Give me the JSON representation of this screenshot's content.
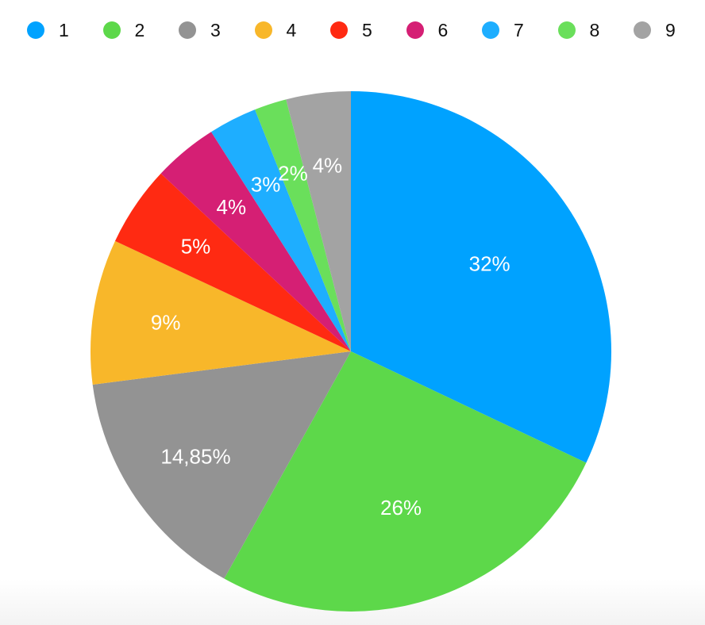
{
  "chart_data": {
    "type": "pie",
    "legend_position": "top",
    "slices": [
      {
        "name": "1",
        "value": 32,
        "label": "32%",
        "color": "#00A2FF"
      },
      {
        "name": "2",
        "value": 26,
        "label": "26%",
        "color": "#5DD84A"
      },
      {
        "name": "3",
        "value": 14.85,
        "label": "14,85%",
        "color": "#939393"
      },
      {
        "name": "4",
        "value": 9,
        "label": "9%",
        "color": "#F8B72A"
      },
      {
        "name": "5",
        "value": 5,
        "label": "5%",
        "color": "#FF2A12"
      },
      {
        "name": "6",
        "value": 4,
        "label": "4%",
        "color": "#D51F74"
      },
      {
        "name": "7",
        "value": 3,
        "label": "3%",
        "color": "#1EAEFF"
      },
      {
        "name": "8",
        "value": 2,
        "label": "2%",
        "color": "#6ADF5B"
      },
      {
        "name": "9",
        "value": 4,
        "label": "4%",
        "color": "#A3A3A3"
      }
    ]
  }
}
